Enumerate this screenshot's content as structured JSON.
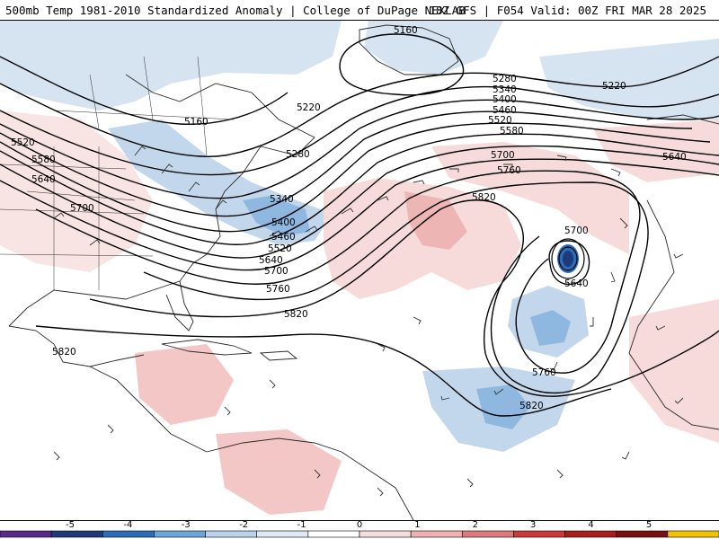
{
  "header": {
    "title_left": "500mb Temp 1981-2010 Standardized Anomaly | College of DuPage NEXLAB",
    "title_right": "18Z GFS | F054 Valid: 00Z FRI MAR 28 2025"
  },
  "contour_labels": [
    "5160",
    "5160",
    "5220",
    "5220",
    "5280",
    "5280",
    "5340",
    "5340",
    "5400",
    "5400",
    "5460",
    "5460",
    "5520",
    "5520",
    "5520",
    "5580",
    "5580",
    "5640",
    "5640",
    "5640",
    "5640",
    "5700",
    "5700",
    "5700",
    "5700",
    "5760",
    "5760",
    "5760",
    "5820",
    "5820",
    "5820",
    "5820"
  ],
  "legend": {
    "ticks": [
      "-5",
      "-4",
      "-3",
      "-2",
      "-1",
      "0",
      "1",
      "2",
      "3",
      "4",
      "5"
    ],
    "colors": [
      "#5a2a8a",
      "#1f3a7a",
      "#2b6cb8",
      "#6aa6dc",
      "#b8d3ec",
      "#dde9f5",
      "#ffffff",
      "#f7dcdc",
      "#eeb0b0",
      "#e07a7a",
      "#c93b3b",
      "#a81e1e",
      "#7a1010",
      "#f2c200"
    ]
  },
  "colors": {
    "warm_anomaly": "#f4c7c7",
    "cold_anomaly": "#c7dbef",
    "coastline": "#2a2a2a",
    "contour": "#000000"
  }
}
